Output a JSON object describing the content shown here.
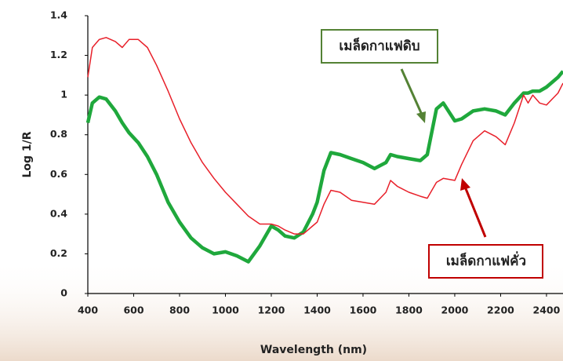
{
  "chart_data": {
    "type": "line",
    "xlabel": "Wavelength (nm)",
    "ylabel": "Log 1/R",
    "xlim": [
      400,
      2472
    ],
    "xticks": [
      400,
      600,
      800,
      1000,
      1200,
      1400,
      1600,
      1800,
      2000,
      2200,
      2400
    ],
    "ylim": [
      0,
      1.4
    ],
    "yticks": [
      0,
      0.2,
      0.4,
      0.6,
      0.8,
      1,
      1.2,
      1.4
    ],
    "grid": false,
    "x": [
      400,
      420,
      450,
      480,
      520,
      550,
      580,
      620,
      660,
      700,
      750,
      800,
      850,
      900,
      950,
      1000,
      1050,
      1100,
      1150,
      1200,
      1230,
      1260,
      1300,
      1340,
      1380,
      1400,
      1430,
      1460,
      1500,
      1550,
      1600,
      1650,
      1700,
      1720,
      1750,
      1800,
      1850,
      1880,
      1920,
      1950,
      2000,
      2030,
      2080,
      2130,
      2180,
      2220,
      2260,
      2300,
      2320,
      2340,
      2370,
      2400,
      2450,
      2472
    ],
    "series": [
      {
        "name": "เมล็ดกาแฟดิบ",
        "color": "#1fa83c",
        "width": 4.5,
        "values": [
          0.86,
          0.96,
          0.99,
          0.98,
          0.92,
          0.86,
          0.81,
          0.76,
          0.69,
          0.6,
          0.46,
          0.36,
          0.28,
          0.23,
          0.2,
          0.21,
          0.19,
          0.16,
          0.24,
          0.34,
          0.32,
          0.29,
          0.28,
          0.31,
          0.4,
          0.46,
          0.62,
          0.71,
          0.7,
          0.68,
          0.66,
          0.63,
          0.66,
          0.7,
          0.69,
          0.68,
          0.67,
          0.7,
          0.93,
          0.96,
          0.87,
          0.88,
          0.92,
          0.93,
          0.92,
          0.9,
          0.96,
          1.01,
          1.01,
          1.02,
          1.02,
          1.04,
          1.09,
          1.12
        ]
      },
      {
        "name": "เมล็ดกาแฟคั่ว",
        "color": "#e8202a",
        "width": 1.5,
        "values": [
          1.09,
          1.24,
          1.28,
          1.29,
          1.27,
          1.24,
          1.28,
          1.28,
          1.24,
          1.15,
          1.02,
          0.88,
          0.76,
          0.66,
          0.58,
          0.51,
          0.45,
          0.39,
          0.35,
          0.35,
          0.34,
          0.32,
          0.3,
          0.3,
          0.34,
          0.36,
          0.45,
          0.52,
          0.51,
          0.47,
          0.46,
          0.45,
          0.51,
          0.57,
          0.54,
          0.51,
          0.49,
          0.48,
          0.56,
          0.58,
          0.57,
          0.65,
          0.77,
          0.82,
          0.79,
          0.75,
          0.86,
          1.0,
          0.96,
          1.0,
          0.96,
          0.95,
          1.01,
          1.06
        ]
      }
    ],
    "annotations": [
      {
        "text": "เมล็ดกาแฟดิบ",
        "color": "#548235"
      },
      {
        "text": "เมล็ดกาแฟคั่ว",
        "color": "#c00000"
      }
    ]
  }
}
